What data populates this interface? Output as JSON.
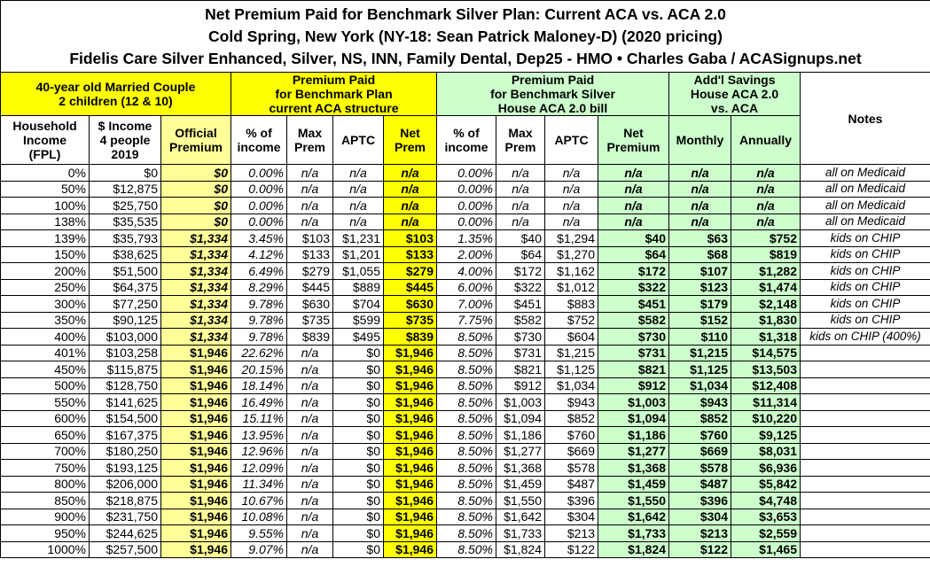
{
  "title": [
    "Net Premium Paid for Benchmark Silver Plan: Current ACA vs. ACA 2.0",
    "Cold Spring, New York (NY-18: Sean Patrick Maloney-D) (2020 pricing)",
    "Fidelis Care Silver Enhanced, Silver, NS, INN, Family Dental, Dep25 - HMO • Charles Gaba / ACASignups.net"
  ],
  "table": {
    "groups": [
      "40-year old Married Couple\n2 children (12 & 10)",
      "Premium Paid\nfor Benchmark Plan\ncurrent ACA structure",
      "Premium Paid\nfor Benchmark Silver\nHouse ACA 2.0 bill",
      "Add'l Savings\nHouse ACA 2.0\nvs. ACA",
      "Notes"
    ],
    "columns": [
      "Household\nIncome\n(FPL)",
      "$ Income\n4 people\n2019",
      "Official\nPremium",
      "% of\nincome",
      "Max\nPrem",
      "APTC",
      "Net\nPrem",
      "% of\nincome",
      "Max\nPrem",
      "APTC",
      "Net\nPremium",
      "Monthly",
      "Annually"
    ],
    "rows": [
      [
        "0%",
        "$0",
        "$0",
        "0.00%",
        "n/a",
        "n/a",
        "n/a",
        "0.00%",
        "n/a",
        "n/a",
        "n/a",
        "n/a",
        "n/a",
        "all on Medicaid"
      ],
      [
        "50%",
        "$12,875",
        "$0",
        "0.00%",
        "n/a",
        "n/a",
        "n/a",
        "0.00%",
        "n/a",
        "n/a",
        "n/a",
        "n/a",
        "n/a",
        "all on Medicaid"
      ],
      [
        "100%",
        "$25,750",
        "$0",
        "0.00%",
        "n/a",
        "n/a",
        "n/a",
        "0.00%",
        "n/a",
        "n/a",
        "n/a",
        "n/a",
        "n/a",
        "all on Medicaid"
      ],
      [
        "138%",
        "$35,535",
        "$0",
        "0.00%",
        "n/a",
        "n/a",
        "n/a",
        "0.00%",
        "n/a",
        "n/a",
        "n/a",
        "n/a",
        "n/a",
        "all on Medicaid"
      ],
      [
        "139%",
        "$35,793",
        "$1,334",
        "3.45%",
        "$103",
        "$1,231",
        "$103",
        "1.35%",
        "$40",
        "$1,294",
        "$40",
        "$63",
        "$752",
        "kids on CHIP"
      ],
      [
        "150%",
        "$38,625",
        "$1,334",
        "4.12%",
        "$133",
        "$1,201",
        "$133",
        "2.00%",
        "$64",
        "$1,270",
        "$64",
        "$68",
        "$819",
        "kids on CHIP"
      ],
      [
        "200%",
        "$51,500",
        "$1,334",
        "6.49%",
        "$279",
        "$1,055",
        "$279",
        "4.00%",
        "$172",
        "$1,162",
        "$172",
        "$107",
        "$1,282",
        "kids on CHIP"
      ],
      [
        "250%",
        "$64,375",
        "$1,334",
        "8.29%",
        "$445",
        "$889",
        "$445",
        "6.00%",
        "$322",
        "$1,012",
        "$322",
        "$123",
        "$1,474",
        "kids on CHIP"
      ],
      [
        "300%",
        "$77,250",
        "$1,334",
        "9.78%",
        "$630",
        "$704",
        "$630",
        "7.00%",
        "$451",
        "$883",
        "$451",
        "$179",
        "$2,148",
        "kids on CHIP"
      ],
      [
        "350%",
        "$90,125",
        "$1,334",
        "9.78%",
        "$735",
        "$599",
        "$735",
        "7.75%",
        "$582",
        "$752",
        "$582",
        "$152",
        "$1,830",
        "kids on CHIP"
      ],
      [
        "400%",
        "$103,000",
        "$1,334",
        "9.78%",
        "$839",
        "$495",
        "$839",
        "8.50%",
        "$730",
        "$604",
        "$730",
        "$110",
        "$1,318",
        "kids on CHIP (400%)"
      ],
      [
        "401%",
        "$103,258",
        "$1,946",
        "22.62%",
        "n/a",
        "$0",
        "$1,946",
        "8.50%",
        "$731",
        "$1,215",
        "$731",
        "$1,215",
        "$14,575"
      ],
      [
        "450%",
        "$115,875",
        "$1,946",
        "20.15%",
        "n/a",
        "$0",
        "$1,946",
        "8.50%",
        "$821",
        "$1,125",
        "$821",
        "$1,125",
        "$13,503"
      ],
      [
        "500%",
        "$128,750",
        "$1,946",
        "18.14%",
        "n/a",
        "$0",
        "$1,946",
        "8.50%",
        "$912",
        "$1,034",
        "$912",
        "$1,034",
        "$12,408"
      ],
      [
        "550%",
        "$141,625",
        "$1,946",
        "16.49%",
        "n/a",
        "$0",
        "$1,946",
        "8.50%",
        "$1,003",
        "$943",
        "$1,003",
        "$943",
        "$11,314"
      ],
      [
        "600%",
        "$154,500",
        "$1,946",
        "15.11%",
        "n/a",
        "$0",
        "$1,946",
        "8.50%",
        "$1,094",
        "$852",
        "$1,094",
        "$852",
        "$10,220"
      ],
      [
        "650%",
        "$167,375",
        "$1,946",
        "13.95%",
        "n/a",
        "$0",
        "$1,946",
        "8.50%",
        "$1,186",
        "$760",
        "$1,186",
        "$760",
        "$9,125"
      ],
      [
        "700%",
        "$180,250",
        "$1,946",
        "12.96%",
        "n/a",
        "$0",
        "$1,946",
        "8.50%",
        "$1,277",
        "$669",
        "$1,277",
        "$669",
        "$8,031"
      ],
      [
        "750%",
        "$193,125",
        "$1,946",
        "12.09%",
        "n/a",
        "$0",
        "$1,946",
        "8.50%",
        "$1,368",
        "$578",
        "$1,368",
        "$578",
        "$6,936"
      ],
      [
        "800%",
        "$206,000",
        "$1,946",
        "11.34%",
        "n/a",
        "$0",
        "$1,946",
        "8.50%",
        "$1,459",
        "$487",
        "$1,459",
        "$487",
        "$5,842"
      ],
      [
        "850%",
        "$218,875",
        "$1,946",
        "10.67%",
        "n/a",
        "$0",
        "$1,946",
        "8.50%",
        "$1,550",
        "$396",
        "$1,550",
        "$396",
        "$4,748"
      ],
      [
        "900%",
        "$231,750",
        "$1,946",
        "10.08%",
        "n/a",
        "$0",
        "$1,946",
        "8.50%",
        "$1,642",
        "$304",
        "$1,642",
        "$304",
        "$3,653"
      ],
      [
        "950%",
        "$244,625",
        "$1,946",
        "9.55%",
        "n/a",
        "$0",
        "$1,946",
        "8.50%",
        "$1,733",
        "$213",
        "$1,733",
        "$213",
        "$2,559"
      ],
      [
        "1000%",
        "$257,500",
        "$1,946",
        "9.07%",
        "n/a",
        "$0",
        "$1,946",
        "8.50%",
        "$1,824",
        "$122",
        "$1,824",
        "$122",
        "$1,465"
      ]
    ]
  }
}
